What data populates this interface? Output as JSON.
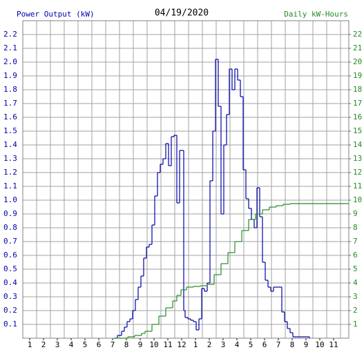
{
  "chart_data": {
    "type": "step",
    "title": "04/19/2020",
    "ylabel": "Power Output (kW)",
    "y2label": "Daily kW-Hours",
    "xlim": [
      0.5,
      24.1
    ],
    "xticks": [
      1,
      2,
      3,
      4,
      5,
      6,
      7,
      8,
      9,
      10,
      11,
      12,
      {
        "value": 13,
        "label": "1"
      },
      {
        "value": 14,
        "label": "2"
      },
      {
        "value": 15,
        "label": "3"
      },
      {
        "value": 16,
        "label": "4"
      },
      {
        "value": 17,
        "label": "5"
      },
      {
        "value": 18,
        "label": "6"
      },
      {
        "value": 19,
        "label": "7"
      },
      {
        "value": 20,
        "label": "8"
      },
      {
        "value": 21,
        "label": "9"
      },
      {
        "value": 22,
        "label": "10"
      },
      {
        "value": 23,
        "label": "11"
      }
    ],
    "ylim": [
      0,
      2.3
    ],
    "yticks": [
      0.1,
      0.2,
      0.3,
      0.4,
      0.5,
      0.6,
      0.7,
      0.8,
      0.9,
      {
        "value": 1,
        "label": "1.0"
      },
      1.1,
      1.2,
      1.3,
      1.4,
      1.5,
      1.6,
      1.7,
      1.8,
      1.9,
      {
        "value": 2,
        "label": "2.0"
      },
      2.1,
      2.2
    ],
    "y2lim": [
      0,
      23
    ],
    "y2ticks": [
      1,
      2,
      3,
      4,
      5,
      6,
      7,
      8,
      9,
      10,
      11,
      12,
      13,
      14,
      15,
      16,
      17,
      18,
      19,
      20,
      21,
      22
    ],
    "grid": true,
    "series": [
      {
        "color": "#0000aa",
        "x": [
          7.1,
          7.35,
          7.65,
          7.85,
          8.05,
          8.25,
          8.45,
          8.65,
          8.85,
          9.05,
          9.25,
          9.45,
          9.65,
          9.85,
          10.05,
          10.25,
          10.45,
          10.65,
          10.85,
          11.05,
          11.25,
          11.45,
          11.65,
          11.85,
          12.15,
          12.25,
          12.45,
          12.65,
          12.85,
          13.05,
          13.25,
          13.45,
          13.65,
          13.85,
          14.05,
          14.25,
          14.45,
          14.65,
          14.85,
          15.05,
          15.25,
          15.45,
          15.65,
          15.85,
          16.05,
          16.25,
          16.45,
          16.65,
          16.85,
          17.05,
          17.25,
          17.45,
          17.65,
          17.85,
          18.05,
          18.25,
          18.45,
          18.65,
          18.85,
          19.05,
          19.25,
          19.45,
          19.65,
          19.85,
          20.05,
          20.25,
          21.05,
          21.25
        ],
        "values": [
          0,
          0.02,
          0.05,
          0.08,
          0.12,
          0.14,
          0.2,
          0.28,
          0.37,
          0.45,
          0.58,
          0.66,
          0.68,
          0.82,
          1.03,
          1.2,
          1.26,
          1.3,
          1.41,
          1.25,
          1.46,
          1.47,
          0.98,
          1.36,
          0.2,
          0.15,
          0.14,
          0.13,
          0.12,
          0.06,
          0.14,
          0.36,
          0.34,
          0.4,
          1.14,
          1.5,
          2.02,
          1.68,
          0.9,
          1.4,
          1.62,
          1.95,
          1.8,
          1.95,
          1.87,
          1.75,
          1.22,
          1.01,
          0.94,
          0.86,
          0.8,
          1.09,
          0.88,
          0.55,
          0.42,
          0.37,
          0.34,
          0.37,
          0.37,
          0.37,
          0.19,
          0.12,
          0.07,
          0.04,
          0.01,
          0.01,
          0.01,
          0
        ]
      },
      {
        "color": "#228b22",
        "axis": "y2",
        "x": [
          7.1,
          8.1,
          8.6,
          9.1,
          9.35,
          9.85,
          10.35,
          10.85,
          11.35,
          11.65,
          11.95,
          12.35,
          12.85,
          13.35,
          13.85,
          14.35,
          14.85,
          15.35,
          15.85,
          16.35,
          16.85,
          17.35,
          17.85,
          18.35,
          18.85,
          19.35,
          19.85,
          24.1
        ],
        "values": [
          0,
          0.1,
          0.2,
          0.35,
          0.5,
          1.0,
          1.6,
          2.2,
          2.7,
          3.1,
          3.5,
          3.7,
          3.75,
          3.8,
          3.9,
          4.6,
          5.4,
          6.2,
          7.0,
          7.8,
          8.6,
          9.0,
          9.3,
          9.5,
          9.6,
          9.7,
          9.75,
          9.75
        ]
      }
    ]
  }
}
